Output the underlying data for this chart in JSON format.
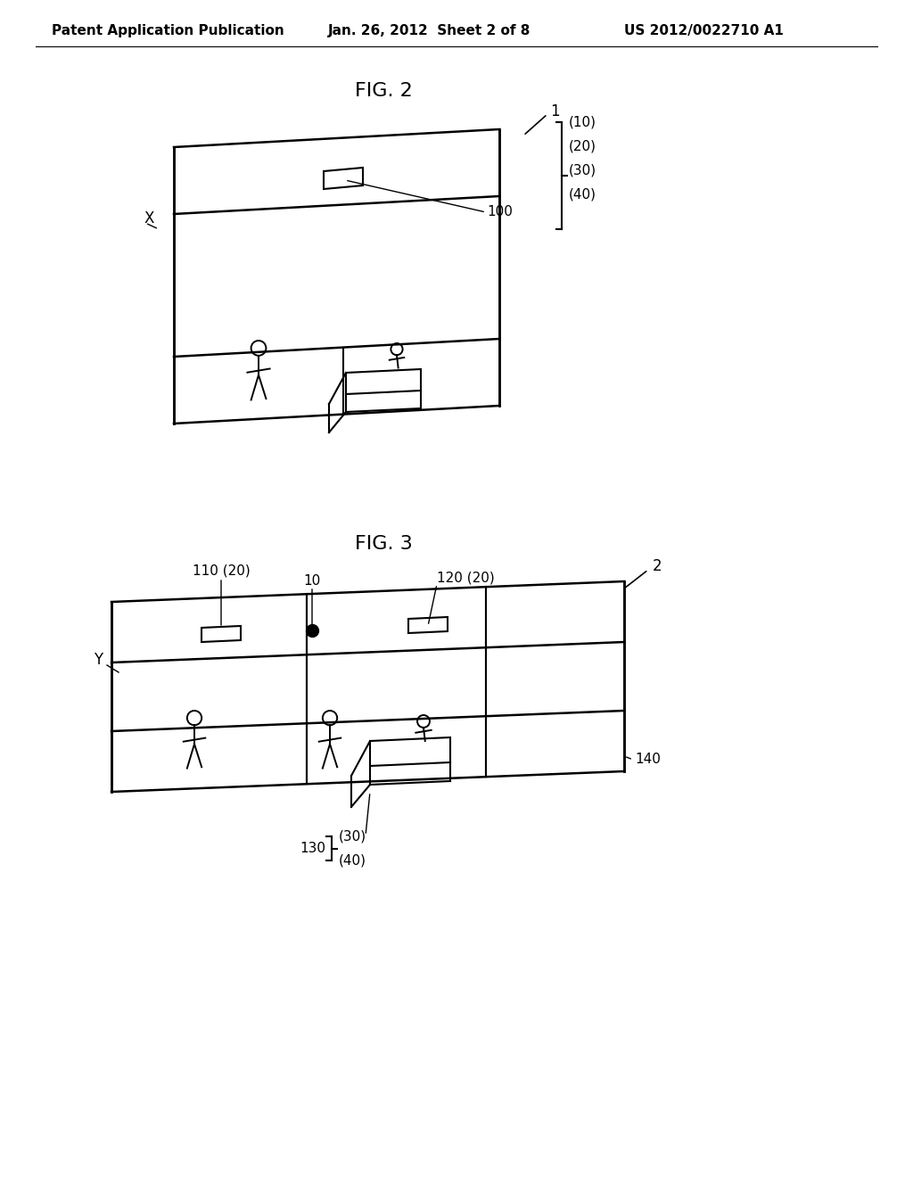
{
  "background_color": "#ffffff",
  "header_left": "Patent Application Publication",
  "header_center": "Jan. 26, 2012  Sheet 2 of 8",
  "header_right": "US 2012/0022710 A1",
  "line_color": "#000000",
  "text_color": "#000000",
  "font_size_header": 11,
  "font_size_fig_title": 16,
  "font_size_label": 11
}
